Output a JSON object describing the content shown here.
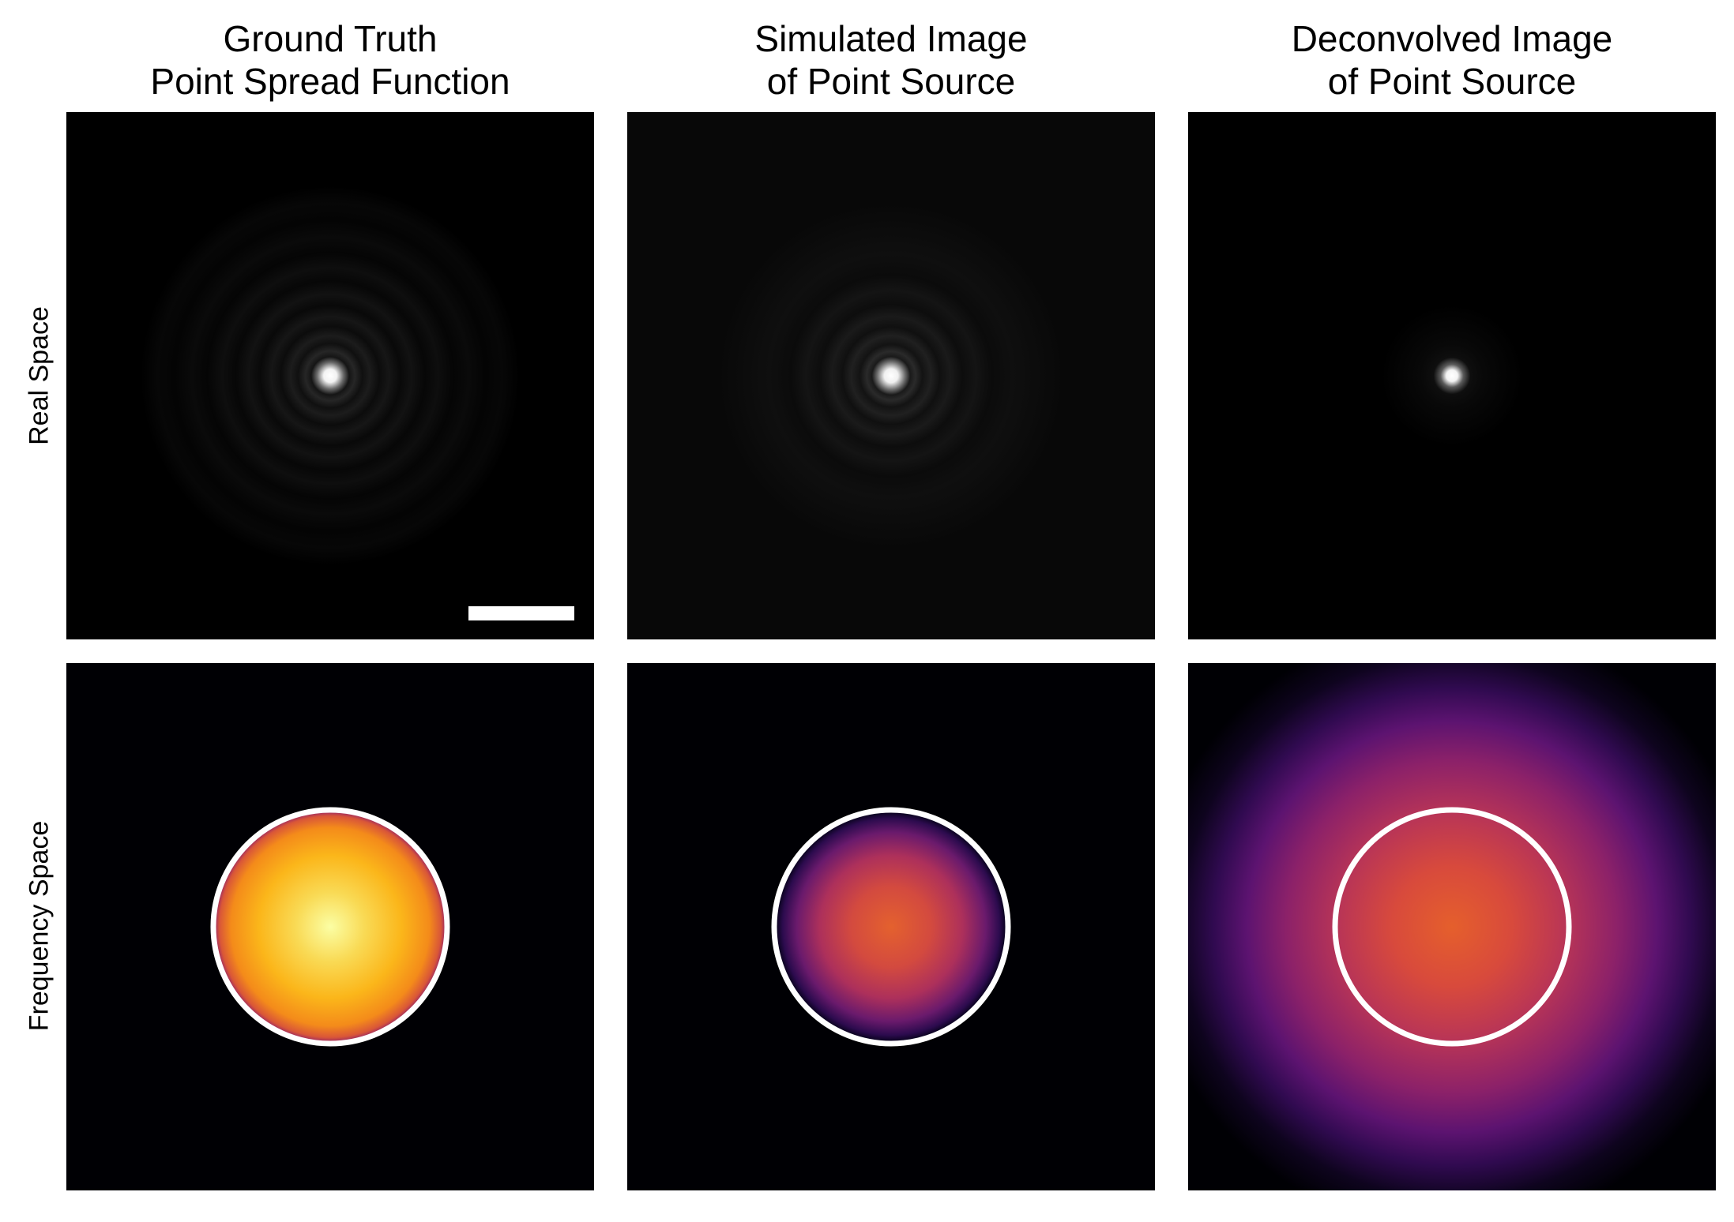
{
  "figure": {
    "columns": [
      {
        "title_line1": "Ground Truth",
        "title_line2": "Point Spread Function"
      },
      {
        "title_line1": "Simulated Image",
        "title_line2": "of Point Source"
      },
      {
        "title_line1": "Deconvolved Image",
        "title_line2": "of Point Source"
      }
    ],
    "rows": [
      {
        "label": "Real Space"
      },
      {
        "label": "Frequency Space"
      }
    ],
    "panels": {
      "real_space": [
        {
          "content": "airy-disk-with-rings",
          "colormap": "gray",
          "has_scale_bar": true
        },
        {
          "content": "airy-disk-with-rings",
          "colormap": "gray",
          "has_scale_bar": false
        },
        {
          "content": "sharp-point",
          "colormap": "gray",
          "has_scale_bar": false
        }
      ],
      "frequency_space": [
        {
          "content": "otf-disk-inside-cutoff",
          "colormap": "inferno"
        },
        {
          "content": "otf-disk-inside-cutoff",
          "colormap": "inferno"
        },
        {
          "content": "broad-spectrum-beyond-cutoff",
          "colormap": "inferno"
        }
      ],
      "cutoff_circle_color": "#ffffff",
      "scale_bar_color": "#ffffff"
    }
  }
}
